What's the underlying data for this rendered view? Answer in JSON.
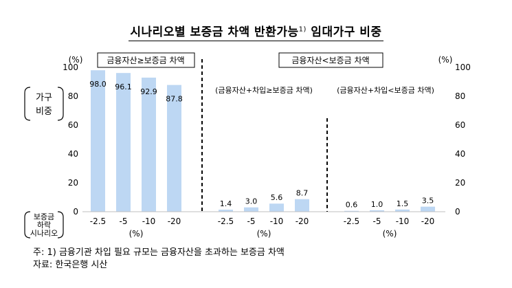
{
  "title": "시나리오별 보증금 차액 반환가능",
  "title_sup": "1)",
  "title_suffix": " 임대가구 비중",
  "chart_data": {
    "type": "bar",
    "y_left": {
      "label": "가구\n비중",
      "unit": "(%)",
      "ticks": [
        0,
        20,
        40,
        60,
        80,
        100
      ],
      "ylim": [
        0,
        100
      ]
    },
    "y_right": {
      "unit": "(%)",
      "ticks": [
        0,
        20,
        40,
        60,
        80,
        100
      ]
    },
    "x_label": "보증금\n하락\n시나리오",
    "x_unit": "(%)",
    "categories": [
      "-2.5",
      "-5",
      "-10",
      "-20"
    ],
    "color": "#BDD7F3",
    "panels": [
      {
        "header": "금융자산≥보증금 차액",
        "sublabel": "",
        "values": [
          98.0,
          96.1,
          92.9,
          87.8
        ],
        "labels": [
          "98.0",
          "96.1",
          "92.9",
          "87.8"
        ],
        "labels_inside": true
      },
      {
        "header": "금융자산<보증금 차액",
        "sublabel": "(금융자산+차입≥보증금 차액)",
        "values": [
          1.4,
          3.0,
          5.6,
          8.7
        ],
        "labels": [
          "1.4",
          "3.0",
          "5.6",
          "8.7"
        ],
        "labels_inside": false
      },
      {
        "header": "",
        "sublabel": "(금융자산+차입<보증금 차액)",
        "values": [
          0.6,
          1.0,
          1.5,
          3.5
        ],
        "labels": [
          "0.6",
          "1.0",
          "1.5",
          "3.5"
        ],
        "labels_inside": false
      }
    ],
    "grid": false,
    "legend": "none"
  },
  "notes": [
    "주: 1) 금융기관 차입 필요 규모는 금융자산을 초과하는 보증금 차액",
    "자료: 한국은행 시산"
  ]
}
